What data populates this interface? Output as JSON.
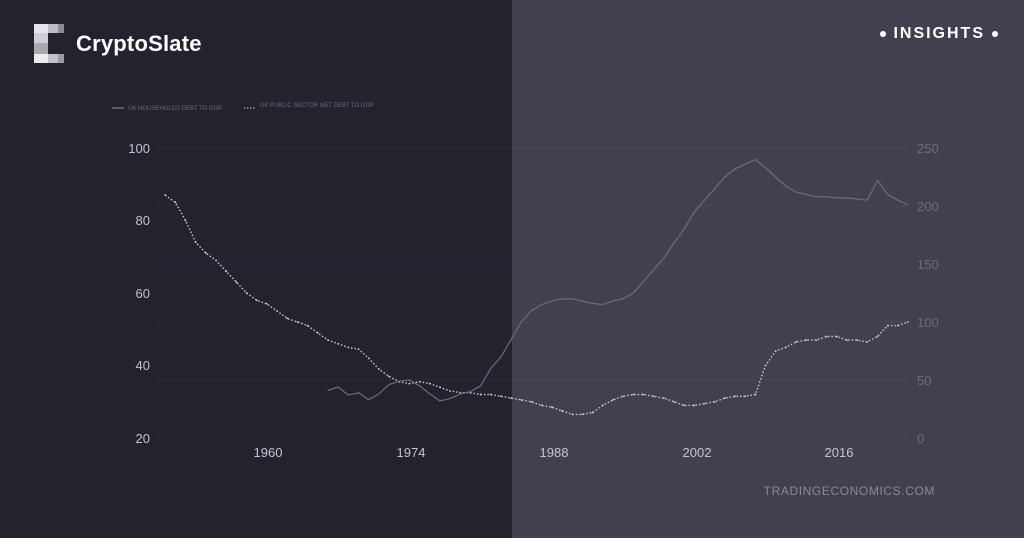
{
  "brand": {
    "name": "CryptoSlate"
  },
  "badge": {
    "label": "INSIGHTS"
  },
  "chart_data": {
    "type": "line",
    "legend": [
      "UK HOUSEHOLDS DEBT TO GDP",
      "UK PUBLIC SECTOR NET DEBT TO GDP"
    ],
    "source": "TRADINGECONOMICS.COM",
    "x_ticks": [
      "1960",
      "1974",
      "1988",
      "2002",
      "2016"
    ],
    "y_left_ticks": [
      "100",
      "80",
      "60",
      "40",
      "20"
    ],
    "y_right_ticks": [
      "250",
      "200",
      "150",
      "100",
      "50",
      "0"
    ],
    "y_left_range": [
      20,
      100
    ],
    "y_right_range": [
      0,
      250
    ],
    "x_range": [
      1949,
      2023
    ],
    "legend_placement": "top-left",
    "grid": true,
    "series": [
      {
        "name": "UK PUBLIC SECTOR NET DEBT TO GDP",
        "axis": "left",
        "color": "#c9c8d4",
        "points": [
          [
            1950,
            87
          ],
          [
            1951,
            85
          ],
          [
            1952,
            80
          ],
          [
            1953,
            74
          ],
          [
            1954,
            71
          ],
          [
            1955,
            69
          ],
          [
            1956,
            66
          ],
          [
            1957,
            63
          ],
          [
            1958,
            60
          ],
          [
            1959,
            58
          ],
          [
            1960,
            57
          ],
          [
            1961,
            55
          ],
          [
            1962,
            53
          ],
          [
            1963,
            52
          ],
          [
            1964,
            51
          ],
          [
            1965,
            49
          ],
          [
            1966,
            47
          ],
          [
            1967,
            46
          ],
          [
            1968,
            45
          ],
          [
            1969,
            44.5
          ],
          [
            1970,
            42
          ],
          [
            1971,
            39
          ],
          [
            1972,
            37
          ],
          [
            1973,
            35.5
          ],
          [
            1974,
            35
          ],
          [
            1975,
            35.5
          ],
          [
            1976,
            35
          ],
          [
            1977,
            34
          ],
          [
            1978,
            33
          ],
          [
            1979,
            32.5
          ],
          [
            1980,
            32.5
          ],
          [
            1981,
            32
          ],
          [
            1982,
            32
          ],
          [
            1983,
            31.5
          ],
          [
            1984,
            31
          ],
          [
            1985,
            30.5
          ],
          [
            1986,
            30
          ],
          [
            1987,
            29
          ],
          [
            1988,
            28.5
          ],
          [
            1989,
            27.5
          ],
          [
            1990,
            26.5
          ],
          [
            1991,
            26.5
          ],
          [
            1992,
            27
          ],
          [
            1993,
            29
          ],
          [
            1994,
            30.5
          ],
          [
            1995,
            31.5
          ],
          [
            1996,
            32
          ],
          [
            1997,
            32
          ],
          [
            1998,
            31.5
          ],
          [
            1999,
            31
          ],
          [
            2000,
            30
          ],
          [
            2001,
            29
          ],
          [
            2002,
            29
          ],
          [
            2003,
            29.5
          ],
          [
            2004,
            30
          ],
          [
            2005,
            31
          ],
          [
            2006,
            31.5
          ],
          [
            2007,
            31.5
          ],
          [
            2008,
            32
          ],
          [
            2009,
            40
          ],
          [
            2010,
            44
          ],
          [
            2011,
            45
          ],
          [
            2012,
            46.5
          ],
          [
            2013,
            47
          ],
          [
            2014,
            47
          ],
          [
            2015,
            48
          ],
          [
            2016,
            48
          ],
          [
            2017,
            47
          ],
          [
            2018,
            47
          ],
          [
            2019,
            46.5
          ],
          [
            2020,
            48
          ],
          [
            2021,
            51
          ],
          [
            2022,
            51
          ],
          [
            2023,
            52
          ]
        ]
      },
      {
        "name": "UK HOUSEHOLDS DEBT TO GDP",
        "axis": "right",
        "color": "#6e6c7a",
        "points": [
          [
            1966,
            41
          ],
          [
            1967,
            44
          ],
          [
            1968,
            37
          ],
          [
            1969,
            39
          ],
          [
            1970,
            33
          ],
          [
            1971,
            38
          ],
          [
            1972,
            46
          ],
          [
            1973,
            49
          ],
          [
            1974,
            50
          ],
          [
            1975,
            45
          ],
          [
            1976,
            38
          ],
          [
            1977,
            32
          ],
          [
            1978,
            34
          ],
          [
            1979,
            38
          ],
          [
            1980,
            40
          ],
          [
            1981,
            45
          ],
          [
            1982,
            60
          ],
          [
            1983,
            70
          ],
          [
            1984,
            85
          ],
          [
            1985,
            100
          ],
          [
            1986,
            110
          ],
          [
            1987,
            115
          ],
          [
            1988,
            118
          ],
          [
            1989,
            120
          ],
          [
            1990,
            120
          ],
          [
            1991,
            118
          ],
          [
            1992,
            116
          ],
          [
            1993,
            115
          ],
          [
            1994,
            118
          ],
          [
            1995,
            120
          ],
          [
            1996,
            125
          ],
          [
            1997,
            135
          ],
          [
            1998,
            145
          ],
          [
            1999,
            155
          ],
          [
            2000,
            168
          ],
          [
            2001,
            180
          ],
          [
            2002,
            195
          ],
          [
            2003,
            205
          ],
          [
            2004,
            215
          ],
          [
            2005,
            225
          ],
          [
            2006,
            232
          ],
          [
            2007,
            236
          ],
          [
            2008,
            240
          ],
          [
            2009,
            233
          ],
          [
            2010,
            225
          ],
          [
            2011,
            217
          ],
          [
            2012,
            212
          ],
          [
            2013,
            210
          ],
          [
            2014,
            208
          ],
          [
            2015,
            208
          ],
          [
            2016,
            207
          ],
          [
            2017,
            207
          ],
          [
            2018,
            206
          ],
          [
            2019,
            205
          ],
          [
            2020,
            222
          ],
          [
            2021,
            210
          ],
          [
            2022,
            205
          ],
          [
            2023,
            201
          ]
        ]
      }
    ]
  }
}
